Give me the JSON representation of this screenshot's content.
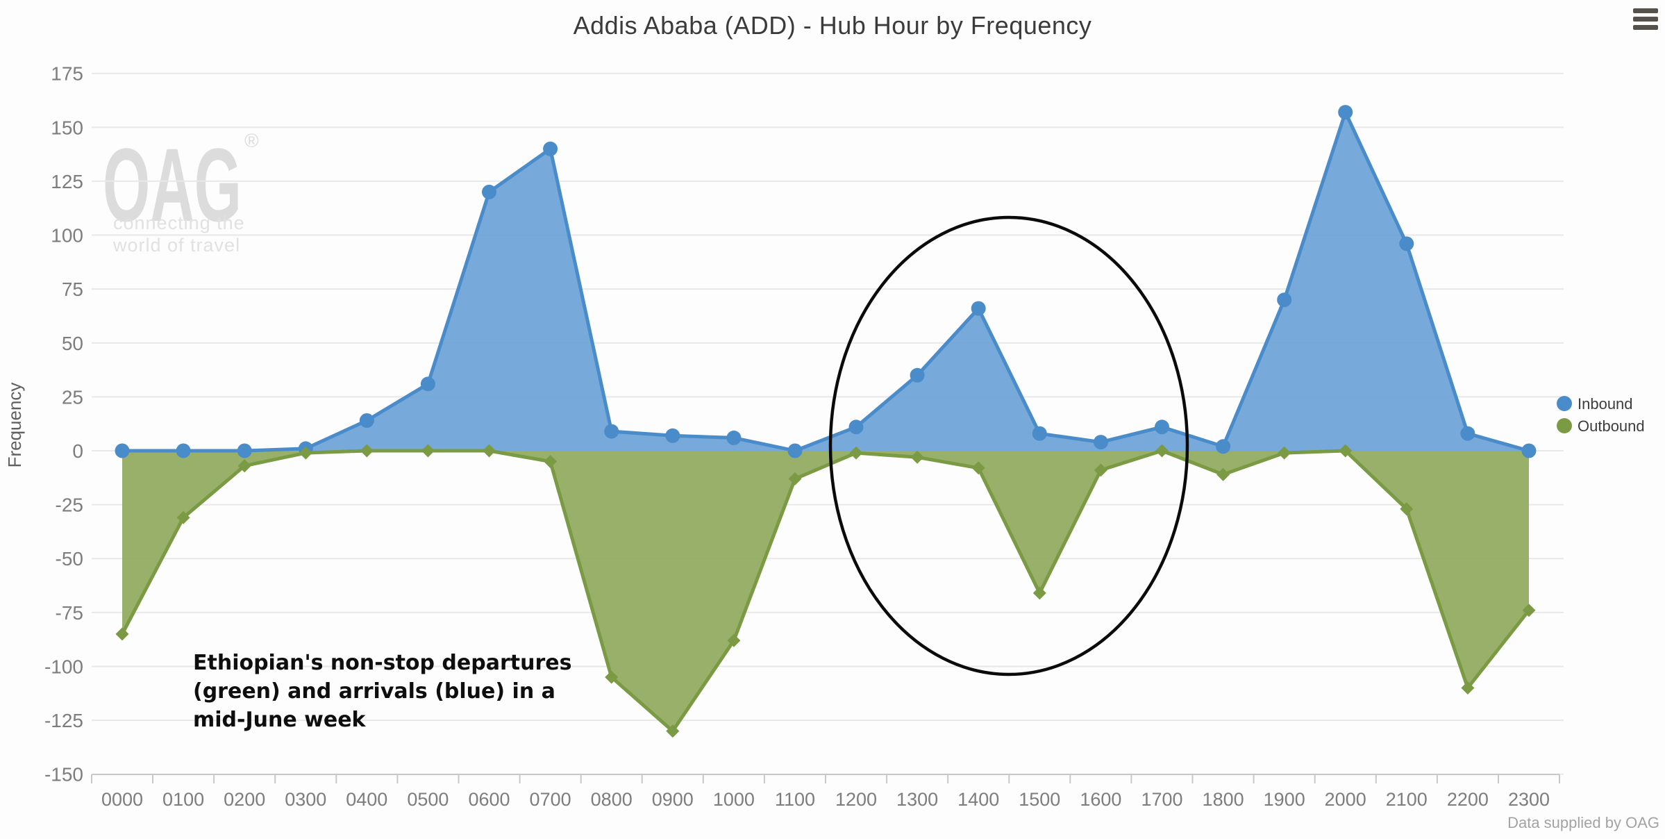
{
  "header": {
    "title": "Addis Ababa (ADD) - Hub Hour by Frequency",
    "menu_icon": "hamburger"
  },
  "watermark": {
    "logo": "OAG",
    "registered": "®",
    "tagline": [
      "connecting the",
      "world of travel"
    ]
  },
  "annotation": {
    "lines": [
      "Ethiopian's non-stop departures",
      "(green) and arrivals (blue) in a",
      "mid-June week"
    ]
  },
  "footer": {
    "credit": "Data supplied by OAG"
  },
  "colors": {
    "inbound_line": "#4a8cc9",
    "inbound_fill": "#6ba2d8",
    "outbound_line": "#7b9a44",
    "outbound_fill": "#90a95e",
    "gridline": "#e8e8e8",
    "axis": "#c8c8c8",
    "tick_label": "#7d7d7d",
    "watermark": "#dcdcdc",
    "ellipse": "#0b0b0b"
  },
  "chart_data": {
    "type": "area",
    "title": "Addis Ababa (ADD) - Hub Hour by Frequency",
    "xlabel": "",
    "ylabel": "Frequency",
    "ylim": [
      -150,
      175
    ],
    "ytick_step": 25,
    "grid": true,
    "legend_position": "right",
    "categories": [
      "0000",
      "0100",
      "0200",
      "0300",
      "0400",
      "0500",
      "0600",
      "0700",
      "0800",
      "0900",
      "1000",
      "1100",
      "1200",
      "1300",
      "1400",
      "1500",
      "1600",
      "1700",
      "1800",
      "1900",
      "2000",
      "2100",
      "2200",
      "2300"
    ],
    "series": [
      {
        "name": "Inbound",
        "marker": "circle",
        "color": "#4a8cc9",
        "fill": "#6ba2d8",
        "values": [
          0,
          0,
          0,
          1,
          14,
          31,
          120,
          140,
          9,
          7,
          6,
          0,
          11,
          35,
          66,
          8,
          4,
          11,
          2,
          70,
          157,
          96,
          8,
          0
        ]
      },
      {
        "name": "Outbound",
        "marker": "diamond",
        "color": "#7b9a44",
        "fill": "#90a95e",
        "values": [
          -85,
          -31,
          -7,
          -1,
          0,
          0,
          0,
          -5,
          -105,
          -130,
          -88,
          -13,
          -1,
          -3,
          -8,
          -66,
          -9,
          0,
          -11,
          -1,
          0,
          -27,
          -110,
          -74
        ]
      }
    ],
    "highlight_ellipse": {
      "shape": "ellipse",
      "covers_hours": [
        "1200",
        "1700"
      ]
    }
  }
}
